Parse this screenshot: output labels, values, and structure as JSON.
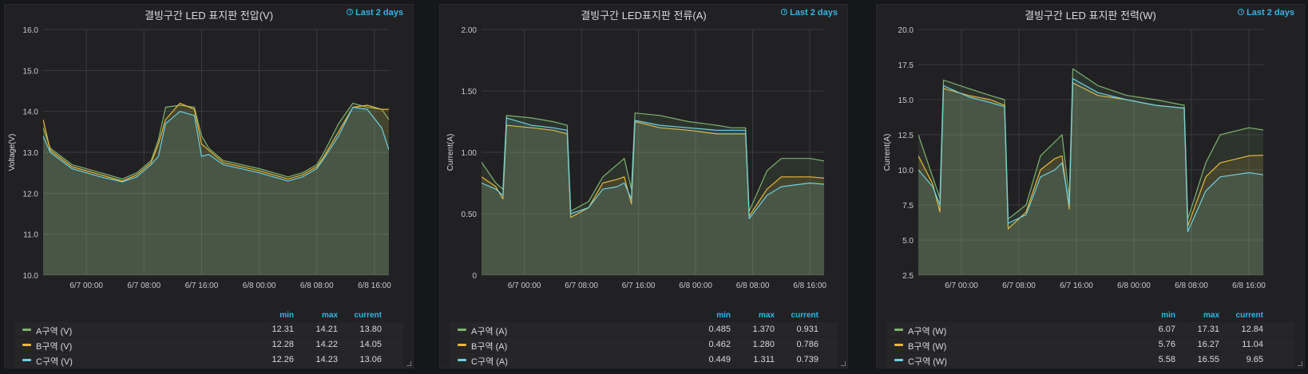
{
  "chart_data": [
    {
      "type": "area",
      "title": "결빙구간 LED 표지판 전압(V)",
      "time_range": "Last 2 days",
      "ylabel": "Voltage(V)",
      "ylim": [
        10.0,
        16.0
      ],
      "ytick_labels": [
        "10.0",
        "11.0",
        "12.0",
        "13.0",
        "14.0",
        "15.0",
        "16.0"
      ],
      "xlim": [
        "6/6 18:00",
        "6/8 18:00"
      ],
      "xtick_labels": [
        "6/7 00:00",
        "6/7 08:00",
        "6/7 16:00",
        "6/8 00:00",
        "6/8 08:00",
        "6/8 16:00"
      ],
      "legend_headers": [
        "min",
        "max",
        "current"
      ],
      "x": [
        "6/6 18:00",
        "6/6 19:00",
        "6/6 22:00",
        "6/7 02:00",
        "6/7 05:00",
        "6/7 07:00",
        "6/7 09:00",
        "6/7 10:00",
        "6/7 11:00",
        "6/7 13:00",
        "6/7 15:00",
        "6/7 16:00",
        "6/7 17:00",
        "6/7 19:00",
        "6/8 00:00",
        "6/8 04:00",
        "6/8 06:00",
        "6/8 08:00",
        "6/8 09:00",
        "6/8 11:00",
        "6/8 13:00",
        "6/8 15:00",
        "6/8 17:00",
        "6/8 18:00"
      ],
      "series": [
        {
          "name": "A구역 (V)",
          "color": "#7eb26d",
          "min": "12.31",
          "max": "14.21",
          "current": "13.80",
          "values": [
            13.6,
            13.1,
            12.7,
            12.5,
            12.35,
            12.5,
            12.8,
            13.3,
            14.1,
            14.15,
            14.1,
            13.4,
            13.1,
            12.8,
            12.6,
            12.4,
            12.5,
            12.7,
            13.0,
            13.7,
            14.2,
            14.1,
            14.05,
            13.8
          ]
        },
        {
          "name": "B구역 (V)",
          "color": "#eab839",
          "min": "12.28",
          "max": "14.22",
          "current": "14.05",
          "values": [
            13.8,
            13.05,
            12.65,
            12.45,
            12.3,
            12.45,
            12.75,
            13.2,
            13.8,
            14.2,
            14.05,
            13.2,
            13.05,
            12.75,
            12.55,
            12.35,
            12.45,
            12.65,
            12.9,
            13.5,
            14.1,
            14.15,
            14.05,
            14.05
          ]
        },
        {
          "name": "C구역 (V)",
          "color": "#6ed0e0",
          "min": "12.26",
          "max": "14.23",
          "current": "13.06",
          "values": [
            13.4,
            13.0,
            12.6,
            12.4,
            12.28,
            12.4,
            12.7,
            12.9,
            13.7,
            14.0,
            13.9,
            12.9,
            12.95,
            12.7,
            12.5,
            12.3,
            12.4,
            12.6,
            12.85,
            13.4,
            14.1,
            14.05,
            13.6,
            13.06
          ]
        }
      ]
    },
    {
      "type": "area",
      "title": "결빙구간 LED표지판 전류(A)",
      "time_range": "Last 2 days",
      "ylabel": "Current(A)",
      "ylim": [
        0,
        2.0
      ],
      "ytick_labels": [
        "0",
        "0.50",
        "1.00",
        "1.50",
        "2.00"
      ],
      "xlim": [
        "6/6 18:00",
        "6/8 18:00"
      ],
      "xtick_labels": [
        "6/7 00:00",
        "6/7 08:00",
        "6/7 16:00",
        "6/8 00:00",
        "6/8 08:00",
        "6/8 16:00"
      ],
      "legend_headers": [
        "min",
        "max",
        "current"
      ],
      "x": [
        "6/6 18:00",
        "6/6 20:00",
        "6/6 21:00",
        "6/6 21:30",
        "6/7 01:00",
        "6/7 04:00",
        "6/7 06:00",
        "6/7 06:30",
        "6/7 09:00",
        "6/7 11:00",
        "6/7 13:00",
        "6/7 14:00",
        "6/7 15:00",
        "6/7 15:30",
        "6/7 19:00",
        "6/7 23:00",
        "6/8 03:00",
        "6/8 05:00",
        "6/8 07:00",
        "6/8 07:30",
        "6/8 10:00",
        "6/8 12:00",
        "6/8 16:00",
        "6/8 18:00"
      ],
      "series": [
        {
          "name": "A구역 (A)",
          "color": "#7eb26d",
          "min": "0.485",
          "max": "1.370",
          "current": "0.931",
          "values": [
            0.92,
            0.75,
            0.7,
            1.3,
            1.28,
            1.25,
            1.22,
            0.52,
            0.6,
            0.8,
            0.9,
            0.95,
            0.7,
            1.32,
            1.3,
            1.25,
            1.22,
            1.2,
            1.2,
            0.52,
            0.85,
            0.95,
            0.95,
            0.93
          ]
        },
        {
          "name": "B구역 (A)",
          "color": "#eab839",
          "min": "0.462",
          "max": "1.280",
          "current": "0.786",
          "values": [
            0.8,
            0.72,
            0.62,
            1.22,
            1.2,
            1.18,
            1.15,
            0.47,
            0.55,
            0.75,
            0.78,
            0.8,
            0.58,
            1.25,
            1.2,
            1.18,
            1.15,
            1.15,
            1.15,
            0.48,
            0.7,
            0.8,
            0.8,
            0.79
          ]
        },
        {
          "name": "C구역 (A)",
          "color": "#6ed0e0",
          "min": "0.449",
          "max": "1.311",
          "current": "0.739",
          "values": [
            0.75,
            0.7,
            0.65,
            1.28,
            1.22,
            1.2,
            1.18,
            0.5,
            0.55,
            0.7,
            0.72,
            0.75,
            0.62,
            1.26,
            1.22,
            1.2,
            1.18,
            1.18,
            1.18,
            0.46,
            0.65,
            0.72,
            0.75,
            0.74
          ]
        }
      ]
    },
    {
      "type": "area",
      "title": "결빙구간 LED 표지판 전력(W)",
      "time_range": "Last 2 days",
      "ylabel": "Current(A)",
      "ylim": [
        2.5,
        20.0
      ],
      "ytick_labels": [
        "2.5",
        "5.0",
        "7.5",
        "10.0",
        "12.5",
        "15.0",
        "17.5",
        "20.0"
      ],
      "xlim": [
        "6/6 18:00",
        "6/8 18:00"
      ],
      "xtick_labels": [
        "6/7 00:00",
        "6/7 08:00",
        "6/7 16:00",
        "6/8 00:00",
        "6/8 08:00",
        "6/8 16:00"
      ],
      "legend_headers": [
        "min",
        "max",
        "current"
      ],
      "x": [
        "6/6 18:00",
        "6/6 20:00",
        "6/6 21:00",
        "6/6 21:30",
        "6/7 01:00",
        "6/7 04:00",
        "6/7 06:00",
        "6/7 06:30",
        "6/7 09:00",
        "6/7 11:00",
        "6/7 13:00",
        "6/7 14:00",
        "6/7 15:00",
        "6/7 15:30",
        "6/7 19:00",
        "6/7 23:00",
        "6/8 03:00",
        "6/8 05:00",
        "6/8 07:00",
        "6/8 07:30",
        "6/8 10:00",
        "6/8 12:00",
        "6/8 16:00",
        "6/8 18:00"
      ],
      "series": [
        {
          "name": "A구역 (W)",
          "color": "#7eb26d",
          "min": "6.07",
          "max": "17.31",
          "current": "12.84",
          "values": [
            12.5,
            9.5,
            8.0,
            16.4,
            15.8,
            15.3,
            15.0,
            6.5,
            7.5,
            11.0,
            12.0,
            12.5,
            8.0,
            17.2,
            16.0,
            15.3,
            15.0,
            14.8,
            14.6,
            6.5,
            10.5,
            12.5,
            13.0,
            12.84
          ]
        },
        {
          "name": "B구역 (W)",
          "color": "#eab839",
          "min": "5.76",
          "max": "16.27",
          "current": "11.04",
          "values": [
            11.0,
            9.0,
            7.0,
            15.8,
            15.3,
            15.0,
            14.6,
            5.8,
            7.0,
            10.0,
            10.8,
            11.0,
            7.2,
            16.2,
            15.3,
            15.0,
            14.6,
            14.5,
            14.4,
            6.0,
            9.5,
            10.5,
            11.0,
            11.04
          ]
        },
        {
          "name": "C구역 (W)",
          "color": "#6ed0e0",
          "min": "5.58",
          "max": "16.55",
          "current": "9.65",
          "values": [
            10.0,
            8.8,
            7.5,
            16.0,
            15.2,
            14.8,
            14.5,
            6.2,
            6.8,
            9.5,
            10.0,
            10.5,
            7.5,
            16.5,
            15.5,
            15.0,
            14.6,
            14.5,
            14.4,
            5.6,
            8.5,
            9.5,
            9.8,
            9.65
          ]
        }
      ]
    }
  ]
}
